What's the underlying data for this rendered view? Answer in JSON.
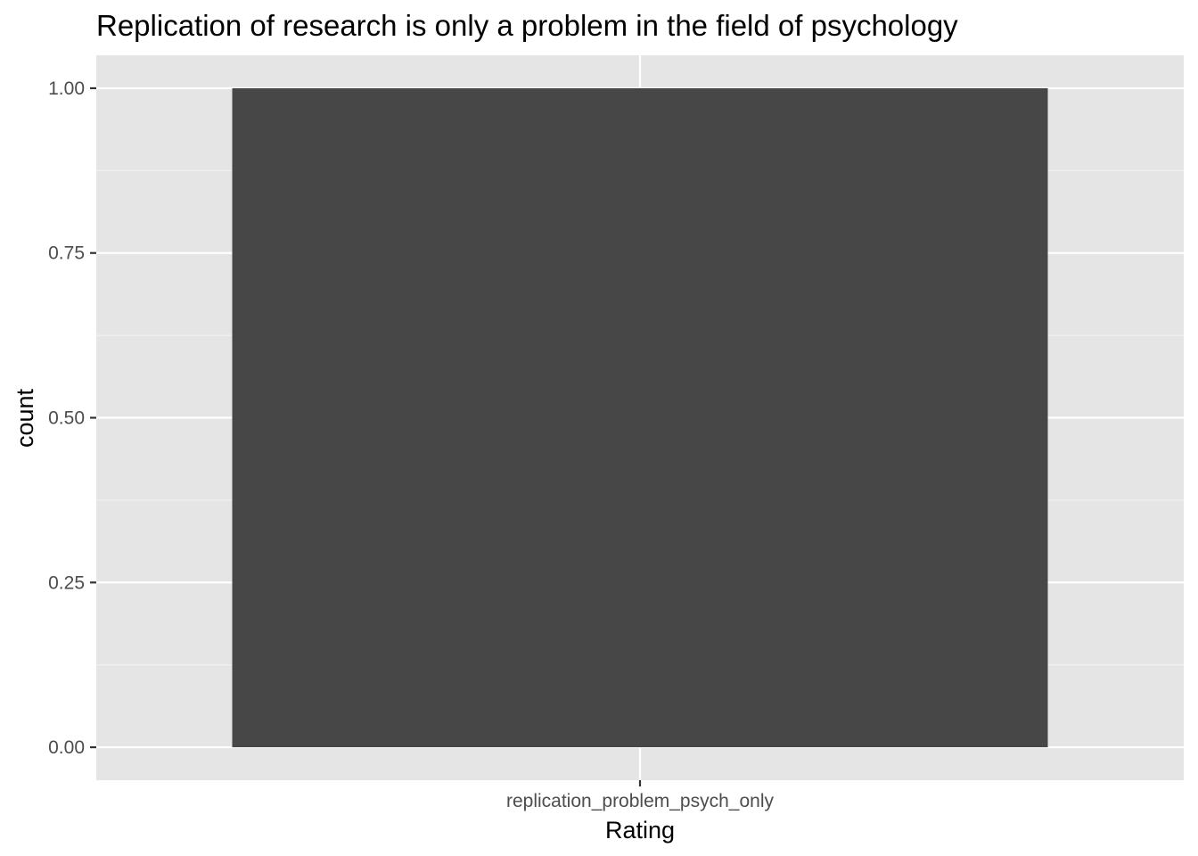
{
  "chart_data": {
    "type": "bar",
    "title": "Replication of research is only a problem in the field of psychology",
    "xlabel": "Rating",
    "ylabel": "count",
    "categories": [
      "replication_problem_psych_only"
    ],
    "values": [
      1
    ],
    "ylim": [
      -0.05,
      1.05
    ],
    "yticks": [
      0,
      0.25,
      0.5,
      0.75,
      1
    ],
    "ytick_labels": [
      "0.00",
      "0.25",
      "0.50",
      "0.75",
      "1.00"
    ],
    "grid": true,
    "legend": "none",
    "colors": {
      "panel_background": "#e5e5e5",
      "grid_major": "#ffffff",
      "grid_minor": "#f2f2f2",
      "bar_fill": "#474747",
      "tick_mark": "#333333",
      "tick_label": "#4d4d4d"
    }
  }
}
